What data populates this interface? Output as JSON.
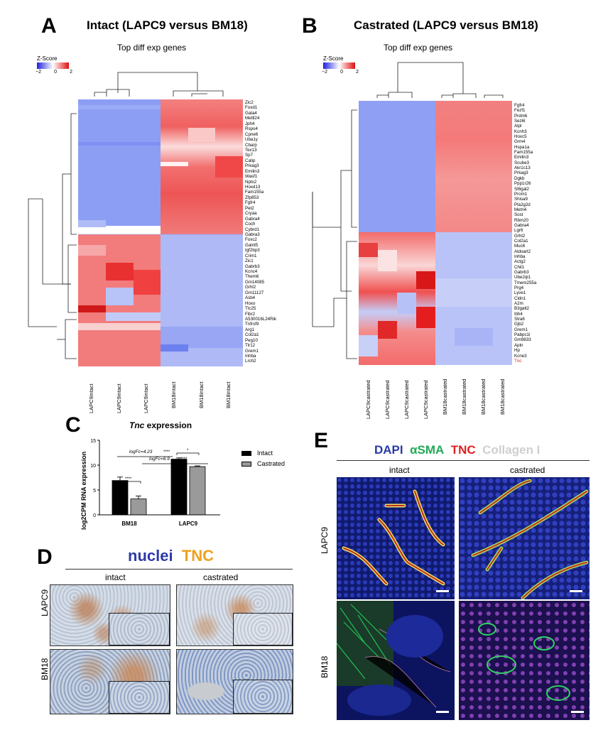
{
  "panelA": {
    "letter": "A",
    "title": "Intact (LAPC9 versus BM18)",
    "subtitle": "Top diff exp genes",
    "zscore_label": "Z-Score",
    "zscore_ticks": [
      "−2",
      "0",
      "2"
    ],
    "genes": [
      "Zic2",
      "Foxd1",
      "Gata4",
      "Mettl24",
      "Jph4",
      "Rspo4",
      "Cpne6",
      "Uba1y",
      "Cbarp",
      "Tex13",
      "Sp7",
      "Catip",
      "Prkag3",
      "Emilin3",
      "Wasf1",
      "Nptx2",
      "Hoxd13",
      "Fam155a",
      "Zfp853",
      "Fgfr4",
      "Pet2",
      "Cryaa",
      "Gabra4",
      "Coch",
      "Cybrd1",
      "Gabra3",
      "Foxc2",
      "Galnt5",
      "Igf2bp3",
      "Crim1",
      "Zic1",
      "Gabrb3",
      "Kcnc4",
      "Them6",
      "Gm14085",
      "Grhl2",
      "Gm11127",
      "Asb4",
      "Hoxo",
      "Ttc25",
      "Fibr2",
      "A530016L24Rik",
      "Tnfrsf9",
      "Arg1",
      "Col2a1",
      "Peg10",
      "Tlr12",
      "Grem1",
      "Inhba",
      "Lrch2"
    ],
    "columns": [
      "LAPC9intact",
      "LAPC9intact",
      "LAPC9intact",
      "BM18intact",
      "BM18intact",
      "BM18intact"
    ]
  },
  "panelB": {
    "letter": "B",
    "title": "Castrated (LAPC9 versus BM18)",
    "subtitle": "Top diff exp genes",
    "zscore_label": "Z-Score",
    "zscore_ticks": [
      "−2",
      "0",
      "2"
    ],
    "genes": [
      "Fgfr4",
      "Fezf1",
      "Prdm6",
      "Sez6l",
      "Alpl",
      "Kcnh3",
      "Hoxc5",
      "Grm4",
      "Hspa1a",
      "Fam155a",
      "Emilin3",
      "Scube3",
      "Akr1c13",
      "Prkag3",
      "Dgkb",
      "Ppp1r26",
      "St6gal2",
      "Prom1",
      "Shisa9",
      "Pla2g2d",
      "Metn4",
      "Sost",
      "Rbm20",
      "Gabra4",
      "Lgr6",
      "Grhl2",
      "Col2a1",
      "Muc6",
      "Aldoart2",
      "Inhba",
      "Actg2",
      "Chil1",
      "Gabrb3",
      "Ube2ql1",
      "Tmem255a",
      "Prg4",
      "Lyve1",
      "Cldn1",
      "A2m",
      "B3galt2",
      "Itih4",
      "Stra6",
      "Gjb2",
      "Grem1",
      "Pabpc1l",
      "Gm9833",
      "Apln",
      "Hp",
      "Kcne3",
      "Tnc"
    ],
    "highlight_gene": "Tnc",
    "highlight_color": "#e02020",
    "columns": [
      "LAPC9castrated",
      "LAPC9castrated",
      "LAPC9castrated",
      "LAPC9castrated",
      "BM18castrated",
      "BM18castrated",
      "BM18castrated",
      "BM18castrated"
    ]
  },
  "panelC": {
    "letter": "C",
    "title_italic": "Tnc",
    "title_rest": " expression",
    "ylabel": "log2CPM RNA expression",
    "annotations": {
      "logfc1": "logFc=4.23",
      "logfc2": "logFc=6.9",
      "sig_bm18": "****",
      "sig_top": "****",
      "sig_mid": "****",
      "sig_lapc9": "*"
    },
    "legend": [
      "Intact",
      "Castrated"
    ],
    "colors": {
      "intact": "#000000",
      "castrated": "#9a9a9a"
    }
  },
  "chart_data": {
    "type": "bar",
    "categories": [
      "BM18",
      "LAPC9"
    ],
    "series": [
      {
        "name": "Intact",
        "values": [
          6.9,
          11.2
        ],
        "errors": [
          0.7,
          0.25
        ]
      },
      {
        "name": "Castrated",
        "values": [
          3.2,
          9.7
        ],
        "errors": [
          0.6,
          0.15
        ]
      }
    ],
    "yticks": [
      "0",
      "5",
      "10",
      "15"
    ],
    "ylim": [
      0,
      15
    ],
    "ylabel": "log2CPM RNA expression"
  },
  "panelD": {
    "letter": "D",
    "stain1": "nuclei",
    "stain2": "TNC",
    "stain1_color": "#2e3aa8",
    "stain2_color": "#f0a020",
    "col_intact": "intact",
    "col_castrated": "castrated",
    "row1": "LAPC9",
    "row2": "BM18"
  },
  "panelE": {
    "letter": "E",
    "stains": [
      "DAPI",
      "αSMA",
      "TNC",
      "Collagen I"
    ],
    "stain_colors": [
      "#2a3aa6",
      "#22aa55",
      "#e02020",
      "#cfcfcf"
    ],
    "col_intact": "intact",
    "col_castrated": "castrated",
    "row1": "LAPC9",
    "row2": "BM18"
  }
}
